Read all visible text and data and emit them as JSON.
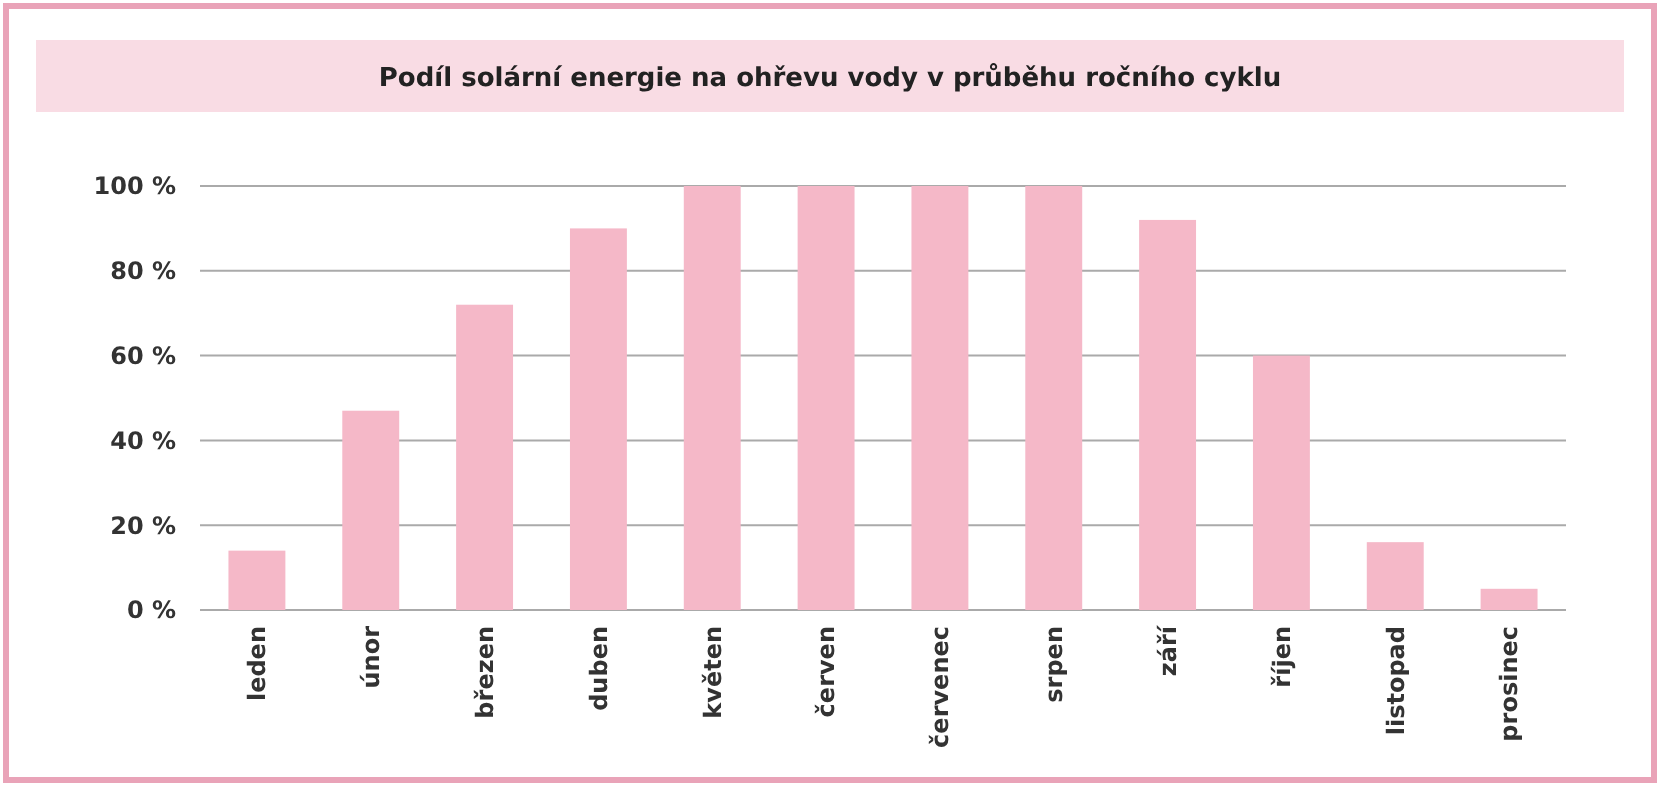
{
  "chart_data": {
    "type": "bar",
    "title": "Podíl solární energie na ohřevu vody v průběhu ročního cyklu",
    "categories": [
      "leden",
      "únor",
      "březen",
      "duben",
      "květen",
      "červen",
      "červenec",
      "srpen",
      "září",
      "říjen",
      "listopad",
      "prosinec"
    ],
    "values": [
      14,
      47,
      72,
      90,
      100,
      100,
      100,
      100,
      92,
      60,
      16,
      5
    ],
    "color": "#f5b8c8",
    "ylim": [
      0,
      100
    ],
    "yticks": [
      {
        "value": 0,
        "label": "0 %"
      },
      {
        "value": 20,
        "label": "20 %"
      },
      {
        "value": 40,
        "label": "40 %"
      },
      {
        "value": 60,
        "label": "60 %"
      },
      {
        "value": 80,
        "label": "80 %"
      },
      {
        "value": 100,
        "label": "100 %"
      }
    ],
    "grid": "y"
  }
}
